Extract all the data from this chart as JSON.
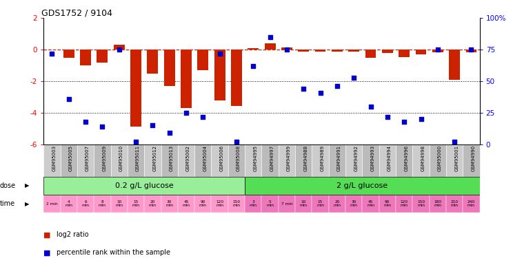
{
  "title": "GDS1752 / 9104",
  "samples": [
    "GSM95003",
    "GSM95005",
    "GSM95007",
    "GSM95009",
    "GSM95010",
    "GSM95011",
    "GSM95012",
    "GSM95013",
    "GSM95002",
    "GSM95004",
    "GSM95006",
    "GSM95008",
    "GSM94995",
    "GSM94997",
    "GSM94999",
    "GSM94988",
    "GSM94989",
    "GSM94991",
    "GSM94992",
    "GSM94993",
    "GSM94994",
    "GSM94996",
    "GSM94998",
    "GSM95000",
    "GSM95001",
    "GSM94990"
  ],
  "log2_ratio": [
    0.0,
    -0.5,
    -1.0,
    -0.8,
    0.3,
    -4.85,
    -1.5,
    -2.3,
    -3.7,
    -1.3,
    -3.2,
    -3.55,
    0.1,
    0.4,
    0.15,
    -0.12,
    -0.12,
    -0.12,
    -0.12,
    -0.5,
    -0.2,
    -0.45,
    -0.3,
    -0.15,
    -1.9,
    -0.15
  ],
  "percentile": [
    72,
    36,
    18,
    14,
    75,
    2,
    15,
    9,
    25,
    22,
    72,
    2,
    62,
    85,
    75,
    44,
    41,
    46,
    53,
    30,
    22,
    18,
    20,
    75,
    2,
    75
  ],
  "time_labels_low": [
    "2 min",
    "4\nmin",
    "6\nmin",
    "8\nmin",
    "10\nmin",
    "15\nmin",
    "20\nmin",
    "30\nmin",
    "45\nmin",
    "90\nmin",
    "120\nmin",
    "150\nmin"
  ],
  "time_labels_high": [
    "3\nmin",
    "5\nmin",
    "7 min",
    "10\nmin",
    "15\nmin",
    "20\nmin",
    "30\nmin",
    "45\nmin",
    "90\nmin",
    "120\nmin",
    "150\nmin",
    "180\nmin",
    "210\nmin",
    "240\nmin"
  ],
  "dose_low_label": "0.2 g/L glucose",
  "dose_high_label": "2 g/L glucose",
  "n_low": 12,
  "n_high": 14,
  "ylim_left": [
    -6,
    2
  ],
  "ylim_right": [
    0,
    100
  ],
  "bar_color": "#cc2200",
  "dot_color": "#0000cc",
  "ref_line_color": "#cc2200",
  "grid_line_color": "#000000",
  "dose_low_color": "#99ee99",
  "dose_high_color": "#55dd55",
  "time_low_color": "#ff99cc",
  "time_high_color": "#ee77bb",
  "sample_bg_color": "#cccccc",
  "sample_bg_color2": "#bbbbbb"
}
